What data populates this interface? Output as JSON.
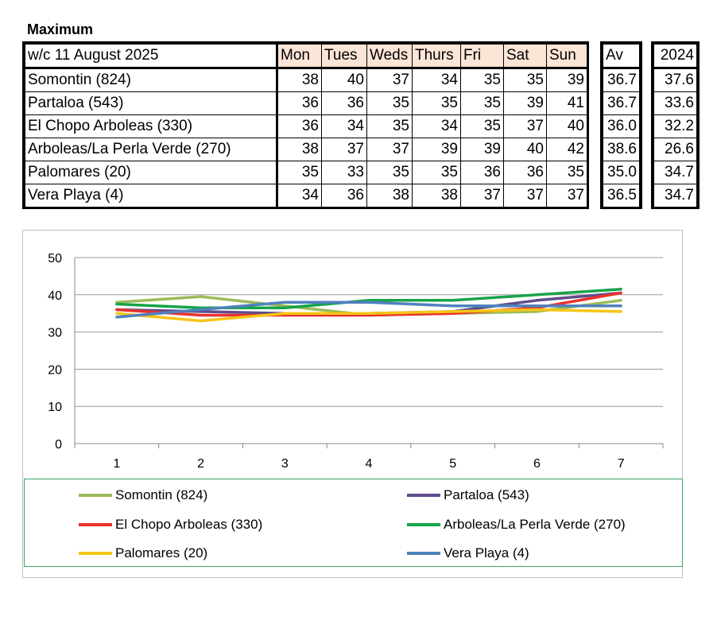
{
  "title": "Maximum",
  "table": {
    "header_label": "w/c 11 August  2025",
    "days": [
      "Mon",
      "Tues",
      "Weds",
      "Thurs",
      "Fri",
      "Sat",
      "Sun"
    ],
    "av_label": "Av",
    "prev_label": "2024",
    "rows": [
      {
        "name": "Somontin (824)",
        "values": [
          "38",
          "40",
          "37",
          "34",
          "35",
          "35",
          "39"
        ],
        "av": "36.7",
        "prev": "37.6"
      },
      {
        "name": "Partaloa (543)",
        "values": [
          "36",
          "36",
          "35",
          "35",
          "35",
          "39",
          "41"
        ],
        "av": "36.7",
        "prev": "33.6"
      },
      {
        "name": "El Chopo  Arboleas (330)",
        "values": [
          "36",
          "34",
          "35",
          "34",
          "35",
          "37",
          "40"
        ],
        "av": "36.0",
        "prev": "32.2"
      },
      {
        "name": "Arboleas/La Perla Verde (270)",
        "values": [
          "38",
          "37",
          "37",
          "39",
          "39",
          "40",
          "42"
        ],
        "av": "38.6",
        "prev": "26.6"
      },
      {
        "name": "Palomares (20)",
        "values": [
          "35",
          "33",
          "35",
          "35",
          "36",
          "36",
          "35"
        ],
        "av": "35.0",
        "prev": "34.7"
      },
      {
        "name": "Vera Playa (4)",
        "values": [
          "34",
          "36",
          "38",
          "38",
          "37",
          "37",
          "37"
        ],
        "av": "36.5",
        "prev": "34.7"
      }
    ]
  },
  "chart_data": {
    "type": "line",
    "x": [
      1,
      2,
      3,
      4,
      5,
      6,
      7
    ],
    "ylim": [
      0,
      50
    ],
    "yticks": [
      0,
      10,
      20,
      30,
      40,
      50
    ],
    "grid": true,
    "legend_position": "bottom",
    "series": [
      {
        "name": "Somontin (824)",
        "color": "#9bbb59",
        "values": [
          38,
          39.5,
          37,
          34.5,
          35,
          35.5,
          38.5
        ]
      },
      {
        "name": "Partaloa (543)",
        "color": "#5f4b8b",
        "values": [
          36,
          35.5,
          35,
          35,
          35.5,
          38.5,
          40.5
        ]
      },
      {
        "name": "El Chopo  Arboleas (330)",
        "color": "#e8322d",
        "values": [
          36,
          34.5,
          34.5,
          34.5,
          35,
          36.5,
          40.5
        ]
      },
      {
        "name": "Arboleas/La Perla Verde (270)",
        "color": "#18a34a",
        "values": [
          37.5,
          36.5,
          36.5,
          38.5,
          38.5,
          40,
          41.5
        ]
      },
      {
        "name": "Palomares (20)",
        "color": "#f5c518",
        "values": [
          35,
          33,
          35,
          35,
          35.5,
          36,
          35.5
        ]
      },
      {
        "name": "Vera Playa (4)",
        "color": "#4f81bd",
        "values": [
          34,
          36,
          38,
          38,
          37,
          37,
          37
        ]
      }
    ]
  }
}
